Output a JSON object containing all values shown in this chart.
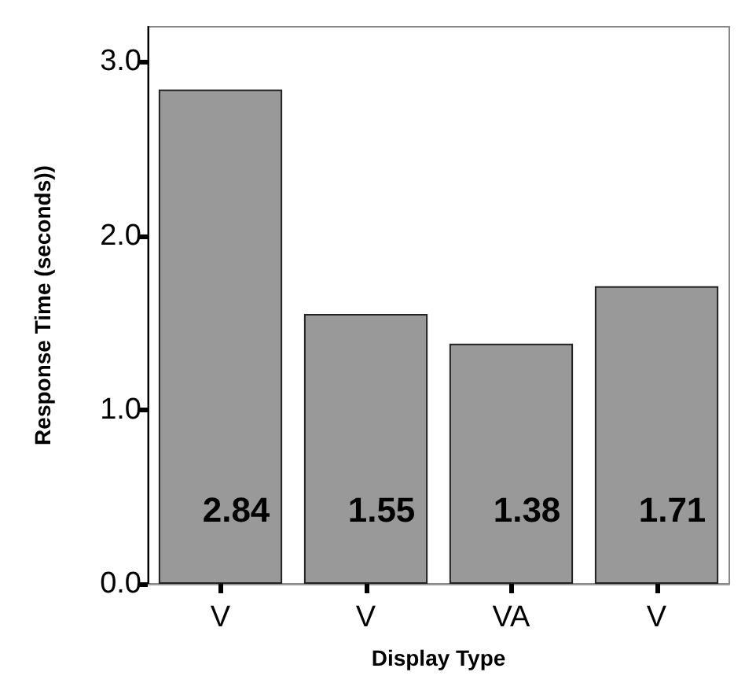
{
  "chart_data": {
    "type": "bar",
    "xlabel": "Display Type",
    "ylabel": "Response Time (seconds))",
    "categories": [
      "V",
      "V",
      "VA",
      "V"
    ],
    "values": [
      2.84,
      1.55,
      1.38,
      1.71
    ],
    "color": "#999999",
    "ylim": [
      0,
      3.2
    ],
    "yticks": [
      {
        "value": 0,
        "label": "0.0"
      },
      {
        "value": 1,
        "label": "1.0"
      },
      {
        "value": 2,
        "label": "2.0"
      },
      {
        "value": 3,
        "label": "3.0"
      }
    ],
    "data_labels": true,
    "grid": false
  }
}
